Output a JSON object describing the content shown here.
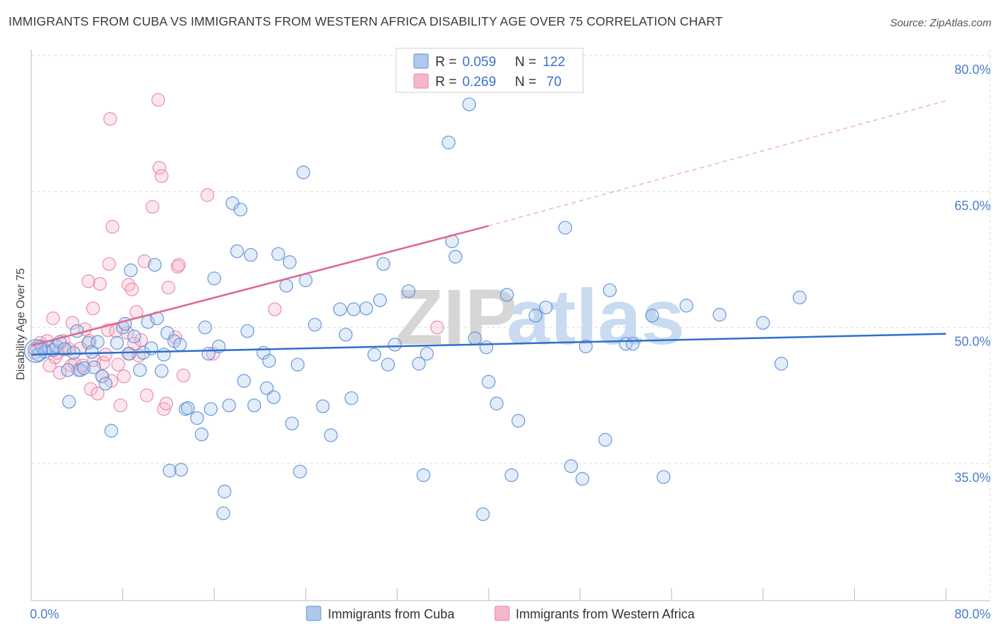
{
  "title": "IMMIGRANTS FROM CUBA VS IMMIGRANTS FROM WESTERN AFRICA DISABILITY AGE OVER 75 CORRELATION CHART",
  "source": "Source: ZipAtlas.com",
  "watermark": {
    "zip": "ZIP",
    "atlas": "atlas"
  },
  "colors": {
    "cuba_fill": "#aec8ee",
    "cuba_stroke": "#5b8fd6",
    "cuba_line": "#2f6fcc",
    "wa_fill": "#f5b8cb",
    "wa_stroke": "#e685a6",
    "wa_line": "#e0678f",
    "tick_text": "#4a7cc9",
    "grid": "#dddddd"
  },
  "legend": {
    "items": [
      {
        "r_label": "R = ",
        "r_value": "0.059",
        "n_label": "N = ",
        "n_value": "122"
      },
      {
        "r_label": "R = ",
        "r_value": "0.269",
        "n_label": "N = ",
        "n_value": " 70"
      }
    ]
  },
  "chart_data": {
    "type": "scatter",
    "title": "IMMIGRANTS FROM CUBA VS IMMIGRANTS FROM WESTERN AFRICA DISABILITY AGE OVER 75 CORRELATION CHART",
    "xlabel": "",
    "ylabel": "Disability Age Over 75",
    "xlim": [
      0,
      80
    ],
    "ylim": [
      20,
      82
    ],
    "x_tick_labels": [
      "0.0%",
      "80.0%"
    ],
    "y_ticks": [
      35,
      50,
      65,
      80
    ],
    "y_tick_labels": [
      "35.0%",
      "50.0%",
      "65.0%",
      "80.0%"
    ],
    "grid": true,
    "legend_position": "top-center",
    "series": [
      {
        "name": "Immigrants from Cuba",
        "trend": {
          "x": [
            0,
            80
          ],
          "y": [
            47.0,
            49.3
          ],
          "style": "solid"
        },
        "points": [
          [
            0.3,
            47.6
          ],
          [
            0.6,
            47.0
          ],
          [
            0.9,
            47.9
          ],
          [
            1.2,
            47.3
          ],
          [
            1.5,
            47.8
          ],
          [
            1.9,
            47.5
          ],
          [
            2.2,
            47.9
          ],
          [
            2.5,
            48.4
          ],
          [
            2.9,
            47.6
          ],
          [
            3.2,
            45.3
          ],
          [
            3.3,
            41.8
          ],
          [
            3.7,
            47.2
          ],
          [
            4.0,
            49.6
          ],
          [
            4.3,
            45.3
          ],
          [
            4.6,
            45.5
          ],
          [
            5.0,
            48.3
          ],
          [
            5.3,
            47.3
          ],
          [
            5.5,
            45.6
          ],
          [
            5.8,
            48.4
          ],
          [
            6.2,
            44.6
          ],
          [
            6.5,
            43.8
          ],
          [
            7.0,
            38.6
          ],
          [
            7.5,
            48.3
          ],
          [
            8.0,
            50.0
          ],
          [
            8.2,
            50.4
          ],
          [
            8.5,
            47.1
          ],
          [
            8.7,
            56.3
          ],
          [
            9.0,
            49.0
          ],
          [
            9.5,
            45.3
          ],
          [
            9.8,
            47.2
          ],
          [
            10.2,
            50.6
          ],
          [
            10.5,
            47.7
          ],
          [
            10.8,
            56.9
          ],
          [
            11.0,
            51.0
          ],
          [
            11.4,
            45.2
          ],
          [
            11.6,
            47.0
          ],
          [
            11.9,
            49.4
          ],
          [
            12.1,
            34.2
          ],
          [
            12.5,
            48.5
          ],
          [
            13.0,
            48.1
          ],
          [
            13.1,
            34.3
          ],
          [
            13.5,
            41.0
          ],
          [
            13.7,
            41.1
          ],
          [
            14.5,
            40.0
          ],
          [
            14.9,
            38.2
          ],
          [
            15.2,
            50.0
          ],
          [
            15.5,
            47.1
          ],
          [
            15.7,
            41.0
          ],
          [
            16.0,
            55.4
          ],
          [
            16.4,
            47.9
          ],
          [
            16.9,
            31.9
          ],
          [
            16.8,
            29.5
          ],
          [
            17.3,
            41.4
          ],
          [
            17.6,
            63.7
          ],
          [
            18.0,
            58.4
          ],
          [
            18.3,
            63.0
          ],
          [
            18.6,
            44.1
          ],
          [
            18.9,
            49.6
          ],
          [
            19.2,
            58.0
          ],
          [
            19.5,
            41.4
          ],
          [
            20.3,
            47.2
          ],
          [
            20.6,
            43.3
          ],
          [
            20.8,
            46.3
          ],
          [
            21.2,
            42.3
          ],
          [
            21.6,
            58.1
          ],
          [
            22.3,
            54.6
          ],
          [
            22.6,
            57.2
          ],
          [
            22.8,
            39.4
          ],
          [
            23.3,
            45.9
          ],
          [
            23.5,
            34.1
          ],
          [
            23.8,
            67.1
          ],
          [
            24.0,
            55.2
          ],
          [
            24.8,
            50.3
          ],
          [
            25.5,
            41.3
          ],
          [
            26.2,
            38.1
          ],
          [
            27.0,
            52.0
          ],
          [
            27.5,
            49.2
          ],
          [
            28.0,
            42.2
          ],
          [
            28.2,
            52.0
          ],
          [
            29.3,
            52.1
          ],
          [
            30.0,
            47.0
          ],
          [
            30.5,
            53.0
          ],
          [
            30.8,
            57.0
          ],
          [
            31.2,
            45.9
          ],
          [
            31.8,
            48.1
          ],
          [
            33.0,
            54.0
          ],
          [
            33.9,
            46.0
          ],
          [
            34.3,
            33.7
          ],
          [
            34.6,
            47.1
          ],
          [
            36.5,
            70.4
          ],
          [
            36.8,
            59.5
          ],
          [
            37.1,
            57.8
          ],
          [
            38.3,
            74.6
          ],
          [
            38.8,
            48.8
          ],
          [
            39.5,
            29.4
          ],
          [
            39.8,
            47.8
          ],
          [
            40.0,
            44.0
          ],
          [
            40.7,
            41.6
          ],
          [
            41.6,
            53.6
          ],
          [
            42.0,
            33.7
          ],
          [
            42.6,
            39.7
          ],
          [
            44.1,
            51.3
          ],
          [
            45.0,
            52.2
          ],
          [
            46.7,
            61.0
          ],
          [
            47.2,
            34.7
          ],
          [
            48.2,
            33.3
          ],
          [
            48.5,
            47.9
          ],
          [
            50.2,
            37.6
          ],
          [
            50.6,
            54.1
          ],
          [
            52.0,
            48.2
          ],
          [
            52.6,
            48.2
          ],
          [
            54.3,
            51.3
          ],
          [
            55.3,
            33.5
          ],
          [
            57.3,
            52.4
          ],
          [
            60.2,
            51.4
          ],
          [
            64.0,
            50.5
          ],
          [
            65.6,
            46.0
          ],
          [
            67.2,
            53.3
          ]
        ]
      },
      {
        "name": "Immigrants from Western Africa",
        "trend": {
          "x": [
            0,
            40
          ],
          "y": [
            48.0,
            61.2
          ],
          "x_dashed": [
            40,
            80
          ],
          "y_dashed": [
            61.2,
            75.0
          ],
          "style": "solid+dashed"
        },
        "points": [
          [
            0.3,
            47.2
          ],
          [
            0.5,
            47.8
          ],
          [
            0.8,
            48.3
          ],
          [
            1.1,
            47.6
          ],
          [
            1.4,
            48.5
          ],
          [
            1.6,
            45.8
          ],
          [
            1.9,
            51.0
          ],
          [
            2.1,
            46.7
          ],
          [
            2.3,
            47.2
          ],
          [
            2.5,
            45.0
          ],
          [
            2.8,
            48.5
          ],
          [
            3.0,
            47.6
          ],
          [
            3.3,
            47.6
          ],
          [
            3.5,
            45.8
          ],
          [
            3.6,
            50.5
          ],
          [
            3.8,
            46.0
          ],
          [
            4.1,
            45.3
          ],
          [
            4.3,
            47.7
          ],
          [
            4.5,
            45.8
          ],
          [
            4.7,
            49.8
          ],
          [
            5.0,
            55.1
          ],
          [
            5.1,
            48.5
          ],
          [
            5.2,
            43.2
          ],
          [
            5.4,
            52.1
          ],
          [
            5.5,
            46.4
          ],
          [
            5.8,
            42.7
          ],
          [
            6.0,
            54.8
          ],
          [
            6.2,
            44.6
          ],
          [
            6.3,
            46.1
          ],
          [
            6.5,
            47.0
          ],
          [
            6.7,
            49.7
          ],
          [
            6.8,
            57.0
          ],
          [
            6.9,
            73.0
          ],
          [
            7.0,
            44.1
          ],
          [
            7.1,
            61.1
          ],
          [
            7.4,
            49.6
          ],
          [
            7.6,
            45.9
          ],
          [
            7.8,
            41.4
          ],
          [
            8.1,
            44.6
          ],
          [
            8.4,
            49.4
          ],
          [
            8.5,
            54.7
          ],
          [
            8.6,
            47.1
          ],
          [
            8.8,
            54.2
          ],
          [
            9.0,
            48.2
          ],
          [
            9.2,
            51.7
          ],
          [
            9.4,
            46.9
          ],
          [
            9.6,
            48.6
          ],
          [
            9.9,
            57.3
          ],
          [
            10.1,
            42.5
          ],
          [
            10.6,
            63.3
          ],
          [
            11.1,
            75.1
          ],
          [
            11.2,
            67.6
          ],
          [
            11.4,
            66.7
          ],
          [
            11.6,
            41.0
          ],
          [
            11.8,
            41.6
          ],
          [
            12.0,
            54.4
          ],
          [
            12.6,
            48.9
          ],
          [
            12.8,
            56.7
          ],
          [
            12.9,
            56.9
          ],
          [
            13.3,
            44.7
          ],
          [
            15.4,
            64.6
          ],
          [
            15.9,
            47.1
          ],
          [
            21.3,
            52.0
          ],
          [
            35.5,
            50.0
          ]
        ]
      }
    ]
  }
}
